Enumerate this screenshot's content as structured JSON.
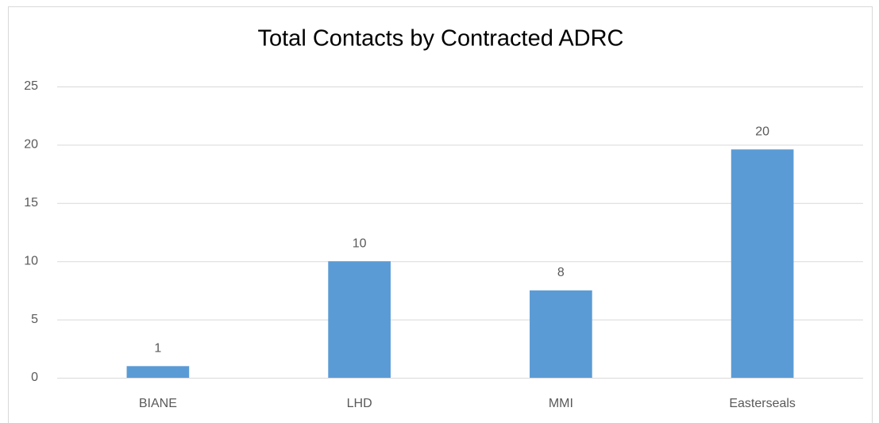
{
  "chart_data": {
    "type": "bar",
    "title": "Total Contacts by Contracted ADRC",
    "categories": [
      "BIANE",
      "LHD",
      "MMI",
      "Easterseals"
    ],
    "values": [
      1,
      10,
      7.5,
      19.6
    ],
    "value_labels": [
      "1",
      "10",
      "8",
      "20"
    ],
    "color": "#5b9bd5",
    "ylim": [
      0,
      25
    ],
    "yticks": [
      0,
      5,
      10,
      15,
      20,
      25
    ],
    "grid": true
  }
}
